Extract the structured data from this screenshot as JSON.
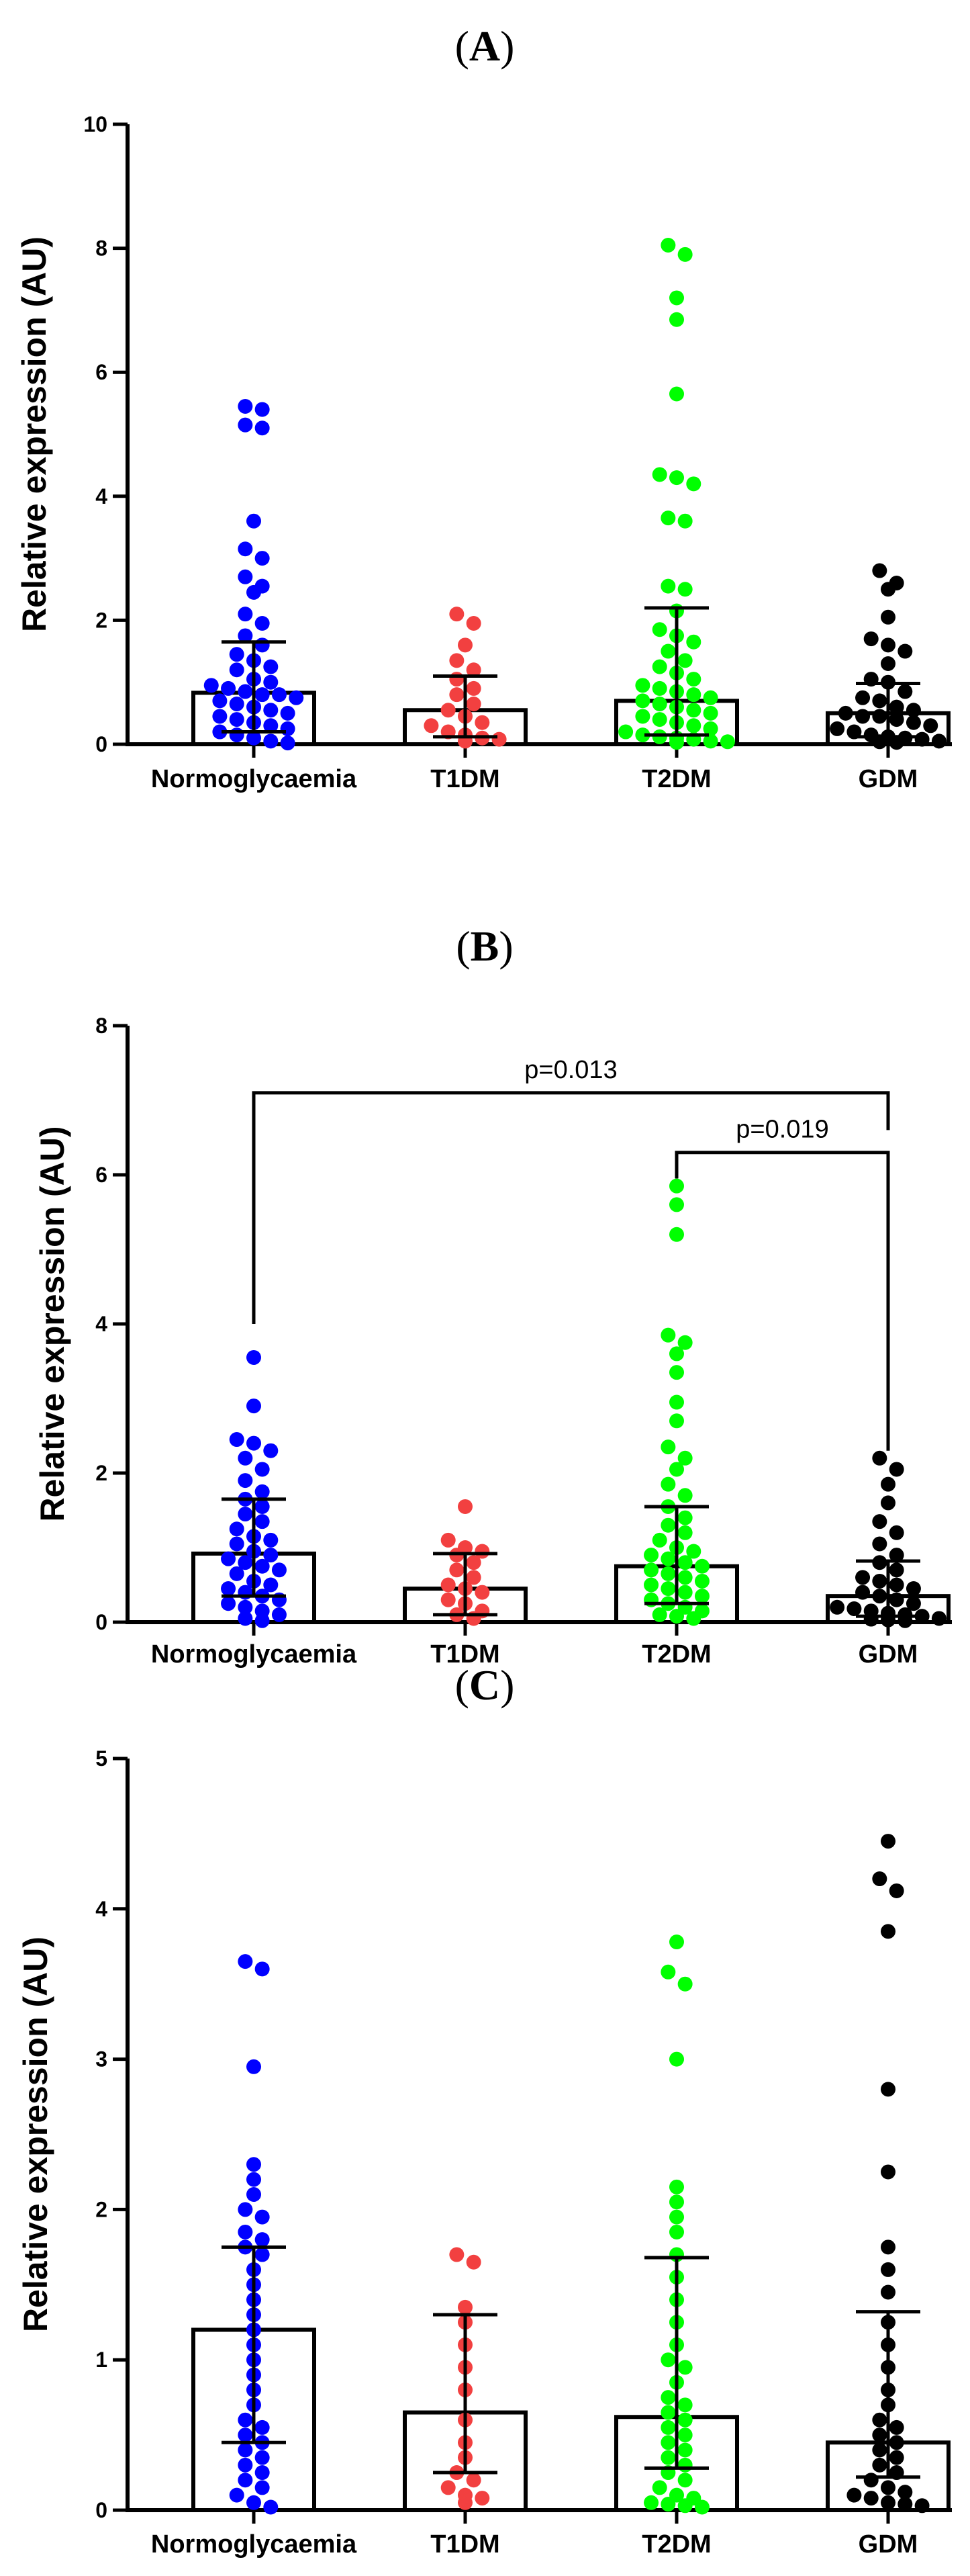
{
  "chart_data": [
    {
      "type": "bar",
      "panel": "(A)",
      "panel_letter": "A",
      "title": "(A)",
      "ylabel": "Relative expression (AU)",
      "xlabel": "",
      "ylim": [
        0,
        10
      ],
      "yticks": [
        0,
        2,
        4,
        6,
        8,
        10
      ],
      "categories": [
        "Normoglycaemia",
        "T1DM",
        "T2DM",
        "GDM"
      ],
      "colors": [
        "#0000ff",
        "#f24040",
        "#00ff00",
        "#000000"
      ],
      "bar_values": [
        0.83,
        0.55,
        0.7,
        0.5
      ],
      "error_upper": [
        1.65,
        1.1,
        2.2,
        0.98
      ],
      "error_lower": [
        0.2,
        0.12,
        0.15,
        0.12
      ],
      "points": [
        [
          5.45,
          5.4,
          5.15,
          5.1,
          3.6,
          3.15,
          3.0,
          2.7,
          2.55,
          2.45,
          2.1,
          1.95,
          1.75,
          1.6,
          1.45,
          1.35,
          1.25,
          1.2,
          1.05,
          1.0,
          0.95,
          0.9,
          0.85,
          0.8,
          0.8,
          0.75,
          0.7,
          0.65,
          0.6,
          0.55,
          0.5,
          0.45,
          0.4,
          0.35,
          0.3,
          0.25,
          0.2,
          0.15,
          0.1,
          0.05,
          0.02
        ],
        [
          2.1,
          1.95,
          1.6,
          1.35,
          1.2,
          1.05,
          0.9,
          0.8,
          0.65,
          0.55,
          0.45,
          0.35,
          0.3,
          0.2,
          0.15,
          0.1,
          0.08,
          0.05
        ],
        [
          8.05,
          7.9,
          7.2,
          6.85,
          5.65,
          4.35,
          4.3,
          4.2,
          3.65,
          3.6,
          2.55,
          2.5,
          2.15,
          1.85,
          1.75,
          1.65,
          1.5,
          1.35,
          1.25,
          1.15,
          1.05,
          0.95,
          0.9,
          0.85,
          0.8,
          0.75,
          0.7,
          0.65,
          0.6,
          0.55,
          0.5,
          0.45,
          0.4,
          0.35,
          0.3,
          0.25,
          0.2,
          0.15,
          0.12,
          0.1,
          0.08,
          0.05,
          0.04,
          0.03
        ],
        [
          2.8,
          2.6,
          2.5,
          2.05,
          1.7,
          1.6,
          1.5,
          1.3,
          1.05,
          1.0,
          0.85,
          0.75,
          0.7,
          0.6,
          0.55,
          0.5,
          0.45,
          0.45,
          0.4,
          0.35,
          0.3,
          0.25,
          0.2,
          0.15,
          0.12,
          0.1,
          0.08,
          0.05,
          0.04,
          0.03
        ]
      ],
      "annotations": []
    },
    {
      "type": "bar",
      "panel": "(B)",
      "panel_letter": "B",
      "title": "(B)",
      "ylabel": "Relative expression (AU)",
      "xlabel": "",
      "ylim": [
        0,
        8
      ],
      "yticks": [
        0,
        2,
        4,
        6,
        8
      ],
      "categories": [
        "Normoglycaemia",
        "T1DM",
        "T2DM",
        "GDM"
      ],
      "colors": [
        "#0000ff",
        "#f24040",
        "#00ff00",
        "#000000"
      ],
      "bar_values": [
        0.92,
        0.45,
        0.75,
        0.35
      ],
      "error_upper": [
        1.65,
        0.92,
        1.55,
        0.82
      ],
      "error_lower": [
        0.35,
        0.1,
        0.25,
        0.08
      ],
      "points": [
        [
          3.55,
          2.9,
          2.45,
          2.4,
          2.3,
          2.2,
          2.05,
          1.9,
          1.75,
          1.65,
          1.55,
          1.45,
          1.35,
          1.25,
          1.15,
          1.1,
          1.05,
          0.95,
          0.9,
          0.85,
          0.8,
          0.75,
          0.7,
          0.65,
          0.55,
          0.5,
          0.45,
          0.4,
          0.35,
          0.3,
          0.25,
          0.2,
          0.15,
          0.1,
          0.05,
          0.02
        ],
        [
          1.55,
          1.1,
          1.0,
          0.95,
          0.9,
          0.8,
          0.7,
          0.6,
          0.5,
          0.45,
          0.4,
          0.3,
          0.25,
          0.15,
          0.1,
          0.05
        ],
        [
          5.85,
          5.6,
          5.2,
          3.85,
          3.75,
          3.6,
          3.35,
          2.95,
          2.7,
          2.35,
          2.2,
          2.05,
          1.85,
          1.7,
          1.55,
          1.4,
          1.3,
          1.2,
          1.1,
          1.0,
          0.95,
          0.9,
          0.85,
          0.8,
          0.75,
          0.7,
          0.65,
          0.6,
          0.55,
          0.5,
          0.45,
          0.4,
          0.35,
          0.3,
          0.25,
          0.2,
          0.15,
          0.1,
          0.08,
          0.05
        ],
        [
          2.2,
          2.05,
          1.85,
          1.6,
          1.35,
          1.2,
          1.05,
          0.9,
          0.8,
          0.7,
          0.6,
          0.55,
          0.5,
          0.45,
          0.4,
          0.35,
          0.3,
          0.25,
          0.2,
          0.18,
          0.15,
          0.12,
          0.1,
          0.08,
          0.05,
          0.04,
          0.03,
          0.02
        ]
      ],
      "annotations": [
        {
          "text": "p=0.013",
          "from": 0,
          "to": 3,
          "y": 7.1,
          "from_y": 4.0,
          "to_y": 6.6
        },
        {
          "text": "p=0.019",
          "from": 2,
          "to": 3,
          "y": 6.3,
          "from_y": 5.95,
          "to_y": 2.3
        }
      ]
    },
    {
      "type": "bar",
      "panel": "(C)",
      "panel_letter": "C",
      "title": "(C)",
      "ylabel": "Relative expression (AU)",
      "xlabel": "",
      "ylim": [
        0,
        5
      ],
      "yticks": [
        0,
        1,
        2,
        3,
        4,
        5
      ],
      "categories": [
        "Normoglycaemia",
        "T1DM",
        "T2DM",
        "GDM"
      ],
      "colors": [
        "#0000ff",
        "#f24040",
        "#00ff00",
        "#000000"
      ],
      "bar_values": [
        1.2,
        0.65,
        0.62,
        0.45
      ],
      "error_upper": [
        1.75,
        1.3,
        1.68,
        1.32
      ],
      "error_lower": [
        0.45,
        0.25,
        0.28,
        0.22
      ],
      "points": [
        [
          3.65,
          3.6,
          2.95,
          2.3,
          2.2,
          2.1,
          2.0,
          1.95,
          1.85,
          1.8,
          1.75,
          1.7,
          1.6,
          1.5,
          1.4,
          1.3,
          1.2,
          1.1,
          1.0,
          0.9,
          0.8,
          0.7,
          0.6,
          0.55,
          0.5,
          0.45,
          0.4,
          0.35,
          0.3,
          0.25,
          0.2,
          0.15,
          0.1,
          0.05,
          0.02
        ],
        [
          1.7,
          1.65,
          1.35,
          1.25,
          1.1,
          0.95,
          0.8,
          0.6,
          0.45,
          0.35,
          0.25,
          0.2,
          0.15,
          0.1,
          0.08,
          0.05
        ],
        [
          3.78,
          3.58,
          3.5,
          3.0,
          2.15,
          2.05,
          1.95,
          1.85,
          1.7,
          1.55,
          1.4,
          1.25,
          1.1,
          1.0,
          0.95,
          0.85,
          0.75,
          0.7,
          0.65,
          0.6,
          0.55,
          0.5,
          0.45,
          0.4,
          0.35,
          0.3,
          0.25,
          0.2,
          0.15,
          0.1,
          0.08,
          0.05,
          0.04,
          0.03,
          0.02
        ],
        [
          4.45,
          4.2,
          4.12,
          3.85,
          2.8,
          2.25,
          1.75,
          1.6,
          1.45,
          1.25,
          1.1,
          0.95,
          0.8,
          0.7,
          0.6,
          0.55,
          0.5,
          0.45,
          0.4,
          0.35,
          0.3,
          0.25,
          0.2,
          0.15,
          0.12,
          0.1,
          0.08,
          0.05,
          0.04,
          0.03
        ]
      ],
      "annotations": []
    }
  ]
}
